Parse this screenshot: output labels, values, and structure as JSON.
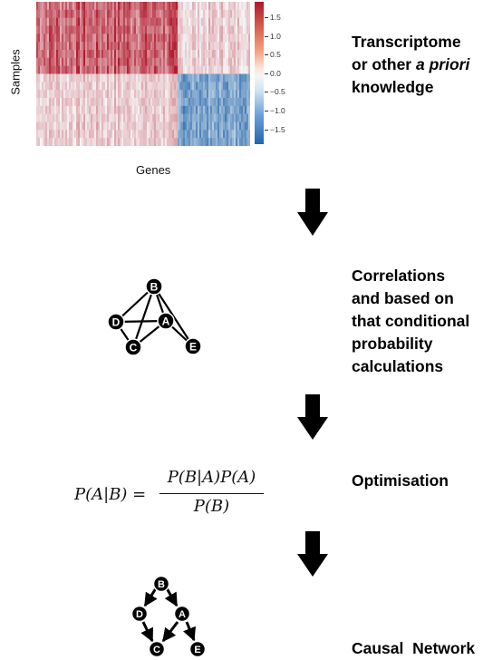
{
  "heatmap": {
    "ylabel": "Samples",
    "xlabel": "Genes",
    "colorbar_ticks": [
      "1.5",
      "1.0",
      "0.5",
      "0.0",
      "−0.5",
      "−1.0",
      "−1.5"
    ],
    "palette": {
      "high": "#b2182b",
      "mid": "#f5f5f5",
      "low": "#2166ac"
    }
  },
  "steps": {
    "step1": {
      "line1": "Transcriptome",
      "line2_pre": "or other ",
      "line2_italic": "a priori",
      "line3": "knowledge"
    },
    "step2": {
      "line1": "Correlations",
      "line2": "and based on",
      "line3": "that conditional",
      "line4": "probability",
      "line5": "calculations"
    },
    "step3": {
      "label": "Optimisation"
    },
    "step4": {
      "label": "Causal  Network"
    }
  },
  "network_undirected": {
    "nodes": [
      "B",
      "D",
      "A",
      "C",
      "E"
    ]
  },
  "network_directed": {
    "nodes": [
      "B",
      "D",
      "A",
      "C",
      "E"
    ]
  },
  "formula": {
    "lhs": "P(A|B) =",
    "numerator": "P(B|A)P(A)",
    "denominator": "P(B)"
  }
}
